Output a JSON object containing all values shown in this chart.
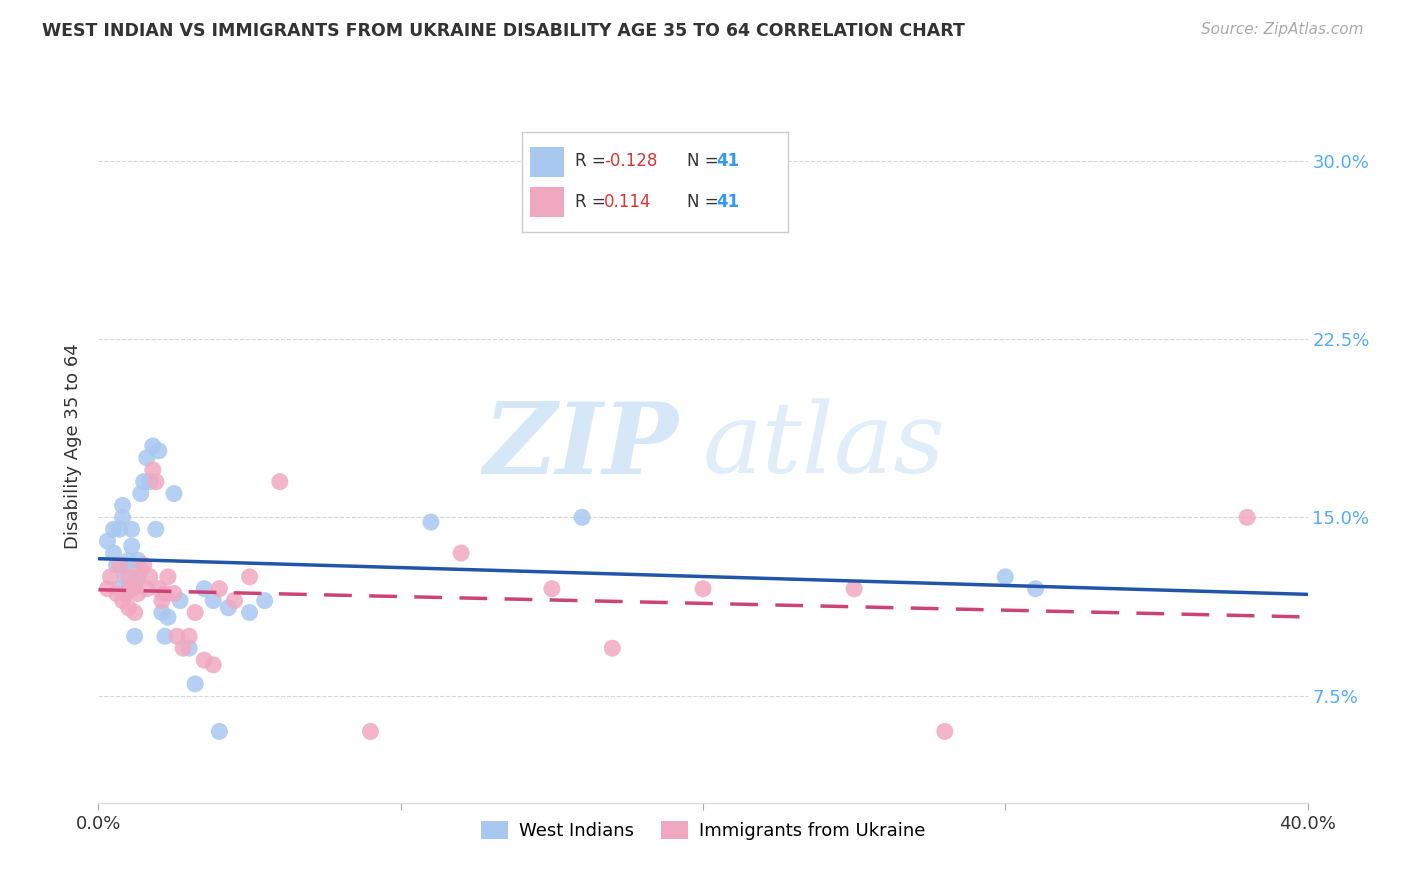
{
  "title": "WEST INDIAN VS IMMIGRANTS FROM UKRAINE DISABILITY AGE 35 TO 64 CORRELATION CHART",
  "source": "Source: ZipAtlas.com",
  "ylabel": "Disability Age 35 to 64",
  "ytick_labels": [
    "7.5%",
    "15.0%",
    "22.5%",
    "30.0%"
  ],
  "ytick_values": [
    0.075,
    0.15,
    0.225,
    0.3
  ],
  "xlim": [
    0.0,
    0.4
  ],
  "ylim": [
    0.03,
    0.33
  ],
  "watermark_zip": "ZIP",
  "watermark_atlas": "atlas",
  "legend_blue_r": "-0.128",
  "legend_blue_n": "41",
  "legend_pink_r": "0.114",
  "legend_pink_n": "41",
  "legend_label_blue": "West Indians",
  "legend_label_pink": "Immigrants from Ukraine",
  "blue_x": [
    0.003,
    0.005,
    0.005,
    0.006,
    0.007,
    0.007,
    0.008,
    0.008,
    0.009,
    0.009,
    0.01,
    0.01,
    0.011,
    0.011,
    0.012,
    0.013,
    0.013,
    0.014,
    0.015,
    0.016,
    0.017,
    0.018,
    0.019,
    0.02,
    0.021,
    0.022,
    0.023,
    0.025,
    0.027,
    0.03,
    0.032,
    0.035,
    0.038,
    0.04,
    0.043,
    0.05,
    0.055,
    0.11,
    0.16,
    0.3,
    0.31
  ],
  "blue_y": [
    0.14,
    0.135,
    0.145,
    0.13,
    0.12,
    0.145,
    0.15,
    0.155,
    0.125,
    0.13,
    0.12,
    0.132,
    0.138,
    0.145,
    0.1,
    0.125,
    0.132,
    0.16,
    0.165,
    0.175,
    0.165,
    0.18,
    0.145,
    0.178,
    0.11,
    0.1,
    0.108,
    0.16,
    0.115,
    0.095,
    0.08,
    0.12,
    0.115,
    0.06,
    0.112,
    0.11,
    0.115,
    0.148,
    0.15,
    0.125,
    0.12
  ],
  "pink_x": [
    0.003,
    0.004,
    0.006,
    0.007,
    0.008,
    0.009,
    0.01,
    0.01,
    0.011,
    0.012,
    0.012,
    0.013,
    0.014,
    0.015,
    0.016,
    0.017,
    0.018,
    0.019,
    0.02,
    0.021,
    0.022,
    0.023,
    0.025,
    0.026,
    0.028,
    0.03,
    0.032,
    0.035,
    0.038,
    0.04,
    0.045,
    0.05,
    0.06,
    0.09,
    0.12,
    0.15,
    0.17,
    0.2,
    0.25,
    0.28,
    0.38
  ],
  "pink_y": [
    0.12,
    0.125,
    0.118,
    0.13,
    0.115,
    0.118,
    0.112,
    0.125,
    0.12,
    0.11,
    0.122,
    0.118,
    0.128,
    0.13,
    0.12,
    0.125,
    0.17,
    0.165,
    0.12,
    0.115,
    0.118,
    0.125,
    0.118,
    0.1,
    0.095,
    0.1,
    0.11,
    0.09,
    0.088,
    0.12,
    0.115,
    0.125,
    0.165,
    0.06,
    0.135,
    0.12,
    0.095,
    0.12,
    0.12,
    0.06,
    0.15
  ],
  "blue_color": "#a8c8f0",
  "pink_color": "#f0a8c0",
  "blue_line_color": "#2255aa",
  "pink_line_color": "#cc4477",
  "background_color": "#ffffff",
  "grid_color": "#cccccc"
}
